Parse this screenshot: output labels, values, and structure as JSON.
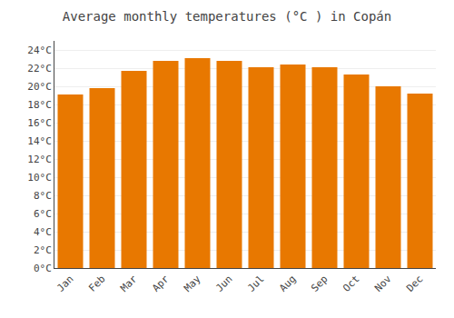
{
  "chart_data": {
    "type": "bar",
    "title": "Average monthly temperatures (°C ) in Copán",
    "categories": [
      "Jan",
      "Feb",
      "Mar",
      "Apr",
      "May",
      "Jun",
      "Jul",
      "Aug",
      "Sep",
      "Oct",
      "Nov",
      "Dec"
    ],
    "values": [
      19.1,
      19.8,
      21.7,
      22.8,
      23.1,
      22.8,
      22.1,
      22.4,
      22.1,
      21.3,
      20.0,
      19.2
    ],
    "color": "#E87800",
    "ylim": [
      0,
      25
    ],
    "yticks": [
      {
        "value": 0,
        "label": "0°C"
      },
      {
        "value": 2,
        "label": "2°C"
      },
      {
        "value": 4,
        "label": "4°C"
      },
      {
        "value": 6,
        "label": "6°C"
      },
      {
        "value": 8,
        "label": "8°C"
      },
      {
        "value": 10,
        "label": "10°C"
      },
      {
        "value": 12,
        "label": "12°C"
      },
      {
        "value": 14,
        "label": "14°C"
      },
      {
        "value": 16,
        "label": "16°C"
      },
      {
        "value": 18,
        "label": "18°C"
      },
      {
        "value": 20,
        "label": "20°C"
      },
      {
        "value": 22,
        "label": "22°C"
      },
      {
        "value": 24,
        "label": "24°C"
      }
    ],
    "grid": true
  }
}
